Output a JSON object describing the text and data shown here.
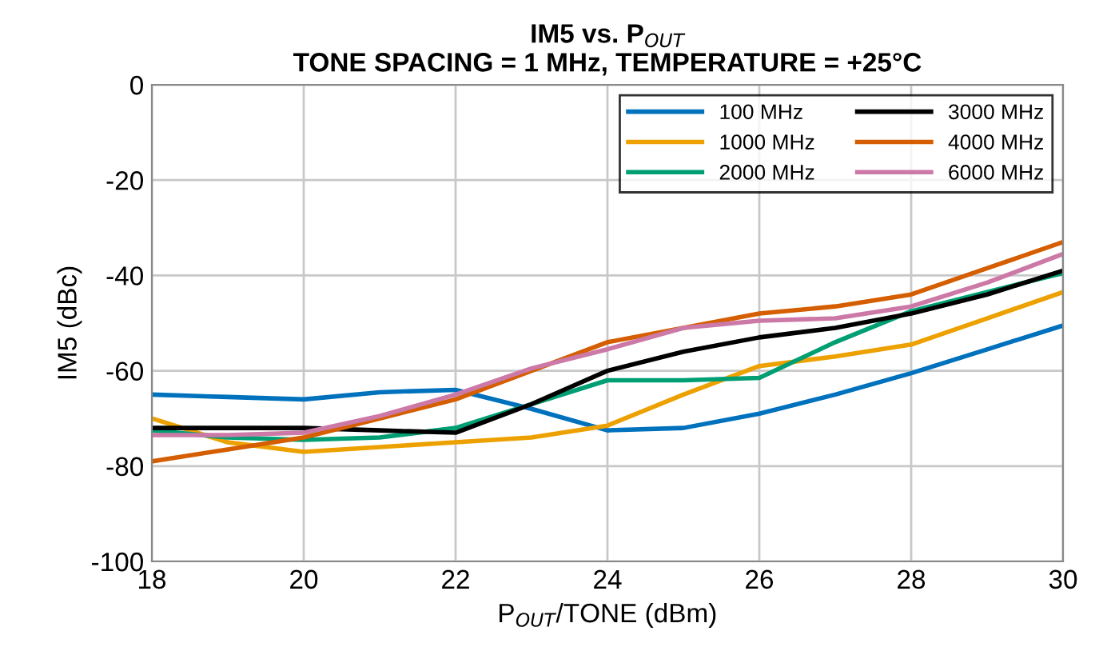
{
  "chart_data": {
    "type": "line",
    "title": "IM5 vs. P$_{OUT}$\nTONE SPACING = 1 MHz, TEMPERATURE = +25°C",
    "xlabel": "P$_{OUT}$/TONE (dBm)",
    "ylabel": "IM5 (dBc)",
    "x": [
      18,
      19,
      20,
      21,
      22,
      23,
      24,
      25,
      26,
      27,
      28,
      29,
      30
    ],
    "series": [
      {
        "name": "100 MHz",
        "color": "#0072bd",
        "values": [
          -65,
          -65.5,
          -66,
          -64.5,
          -64,
          -68,
          -72.5,
          -72,
          -69,
          -65,
          -60.5,
          -55.5,
          -50.5
        ]
      },
      {
        "name": "1000 MHz",
        "color": "#eda100",
        "values": [
          -70,
          -75,
          -77,
          -76,
          -75,
          -74,
          -71.5,
          -65,
          -59,
          -57,
          -54.5,
          -49,
          -43.5
        ]
      },
      {
        "name": "2000 MHz",
        "color": "#009e73",
        "values": [
          -72.5,
          -74,
          -74.5,
          -74,
          -72,
          -67,
          -62,
          -62,
          -61.5,
          -54,
          -47.5,
          -43.5,
          -39.5
        ]
      },
      {
        "name": "3000 MHz",
        "color": "#000000",
        "values": [
          -72,
          -72,
          -72,
          -72.5,
          -73,
          -67,
          -60,
          -56,
          -53,
          -51,
          -48,
          -44,
          -39
        ]
      },
      {
        "name": "4000 MHz",
        "color": "#d55e00",
        "values": [
          -79,
          -76.5,
          -74,
          -70,
          -66,
          -60,
          -54,
          -51,
          -48,
          -46.5,
          -44,
          -38.5,
          -33
        ]
      },
      {
        "name": "6000 MHz",
        "color": "#cc79a7",
        "values": [
          -73.5,
          -73.5,
          -73,
          -69.5,
          -65,
          -59.5,
          -55.5,
          -51,
          -49.5,
          -49,
          -46.5,
          -41.5,
          -35.5
        ]
      }
    ],
    "xlim": [
      18,
      30
    ],
    "xticks": [
      18,
      20,
      22,
      24,
      26,
      28,
      30
    ],
    "ylim": [
      -100,
      0
    ],
    "yticks": [
      -100,
      -80,
      -60,
      -40,
      -20,
      0
    ],
    "grid": true,
    "legend": "top right"
  }
}
